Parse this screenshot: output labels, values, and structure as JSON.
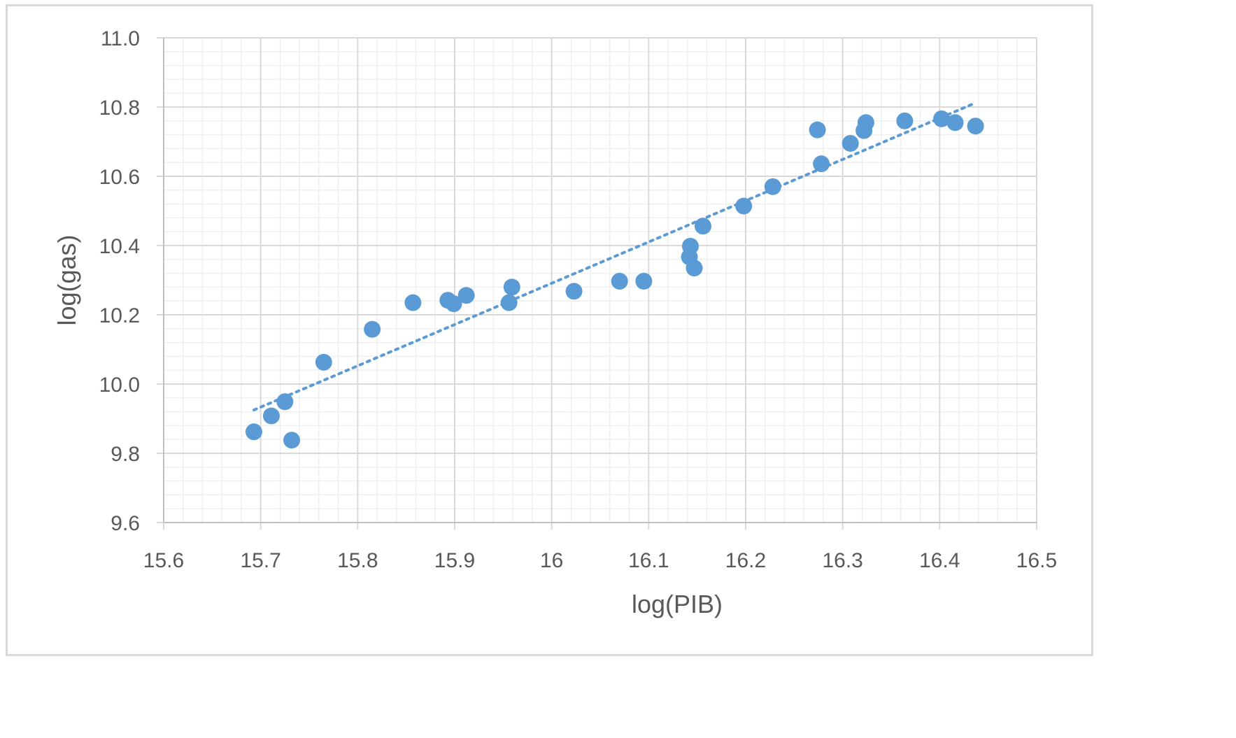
{
  "chart_data": {
    "type": "scatter",
    "title": "",
    "xlabel": "log(PIB)",
    "ylabel": "log(gas)",
    "xlim": [
      15.6,
      16.5
    ],
    "ylim": [
      9.6,
      11.0
    ],
    "x_ticks": [
      "15.6",
      "15.7",
      "15.8",
      "15.9",
      "16",
      "16.1",
      "16.2",
      "16.3",
      "16.4",
      "16.5"
    ],
    "y_ticks": [
      "9.6",
      "9.8",
      "10.0",
      "10.2",
      "10.4",
      "10.6",
      "10.8",
      "11.0"
    ],
    "grid": true,
    "legend": "none",
    "marker_color": "#5b9bd5",
    "trendline": {
      "type": "linear",
      "style": "dotted",
      "color": "#5b9bd5",
      "x_start": 15.693,
      "y_start": 9.925,
      "x_end": 16.437,
      "y_end": 10.812
    },
    "points": [
      {
        "x": 15.693,
        "y": 9.862
      },
      {
        "x": 15.711,
        "y": 9.908
      },
      {
        "x": 15.725,
        "y": 9.949
      },
      {
        "x": 15.732,
        "y": 9.838
      },
      {
        "x": 15.765,
        "y": 10.063
      },
      {
        "x": 15.815,
        "y": 10.158
      },
      {
        "x": 15.857,
        "y": 10.235
      },
      {
        "x": 15.893,
        "y": 10.242
      },
      {
        "x": 15.899,
        "y": 10.232
      },
      {
        "x": 15.912,
        "y": 10.256
      },
      {
        "x": 15.956,
        "y": 10.235
      },
      {
        "x": 15.959,
        "y": 10.28
      },
      {
        "x": 16.023,
        "y": 10.268
      },
      {
        "x": 16.07,
        "y": 10.297
      },
      {
        "x": 16.095,
        "y": 10.297
      },
      {
        "x": 16.142,
        "y": 10.367
      },
      {
        "x": 16.143,
        "y": 10.398
      },
      {
        "x": 16.147,
        "y": 10.335
      },
      {
        "x": 16.156,
        "y": 10.456
      },
      {
        "x": 16.198,
        "y": 10.514
      },
      {
        "x": 16.228,
        "y": 10.57
      },
      {
        "x": 16.274,
        "y": 10.734
      },
      {
        "x": 16.278,
        "y": 10.636
      },
      {
        "x": 16.308,
        "y": 10.695
      },
      {
        "x": 16.322,
        "y": 10.732
      },
      {
        "x": 16.324,
        "y": 10.755
      },
      {
        "x": 16.364,
        "y": 10.76
      },
      {
        "x": 16.402,
        "y": 10.766
      },
      {
        "x": 16.416,
        "y": 10.755
      },
      {
        "x": 16.437,
        "y": 10.745
      }
    ]
  }
}
